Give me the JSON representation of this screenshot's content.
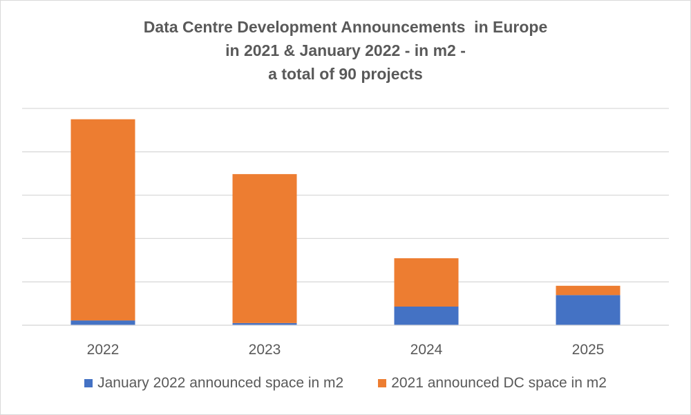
{
  "chart_data": {
    "type": "bar",
    "stacked": true,
    "title_lines": [
      "Data Centre Development Announcements  in Europe",
      "in 2021 & January 2022 - in m2 -",
      "a total of 90 projects"
    ],
    "categories": [
      "2022",
      "2023",
      "2024",
      "2025"
    ],
    "series": [
      {
        "name": "January 2022 announced space in m2",
        "color": "#4472C4",
        "values": [
          2.2,
          1.0,
          8.6,
          13.9
        ]
      },
      {
        "name": "2021 announced DC space in m2",
        "color": "#ED7D31",
        "values": [
          92.8,
          68.7,
          22.3,
          4.3
        ]
      }
    ],
    "ylim": [
      0,
      100
    ],
    "gridlines": [
      0,
      20,
      40,
      60,
      80,
      100
    ],
    "y_tick_labels_visible": false,
    "xlabel": "",
    "ylabel": "",
    "legend_position": "bottom"
  }
}
